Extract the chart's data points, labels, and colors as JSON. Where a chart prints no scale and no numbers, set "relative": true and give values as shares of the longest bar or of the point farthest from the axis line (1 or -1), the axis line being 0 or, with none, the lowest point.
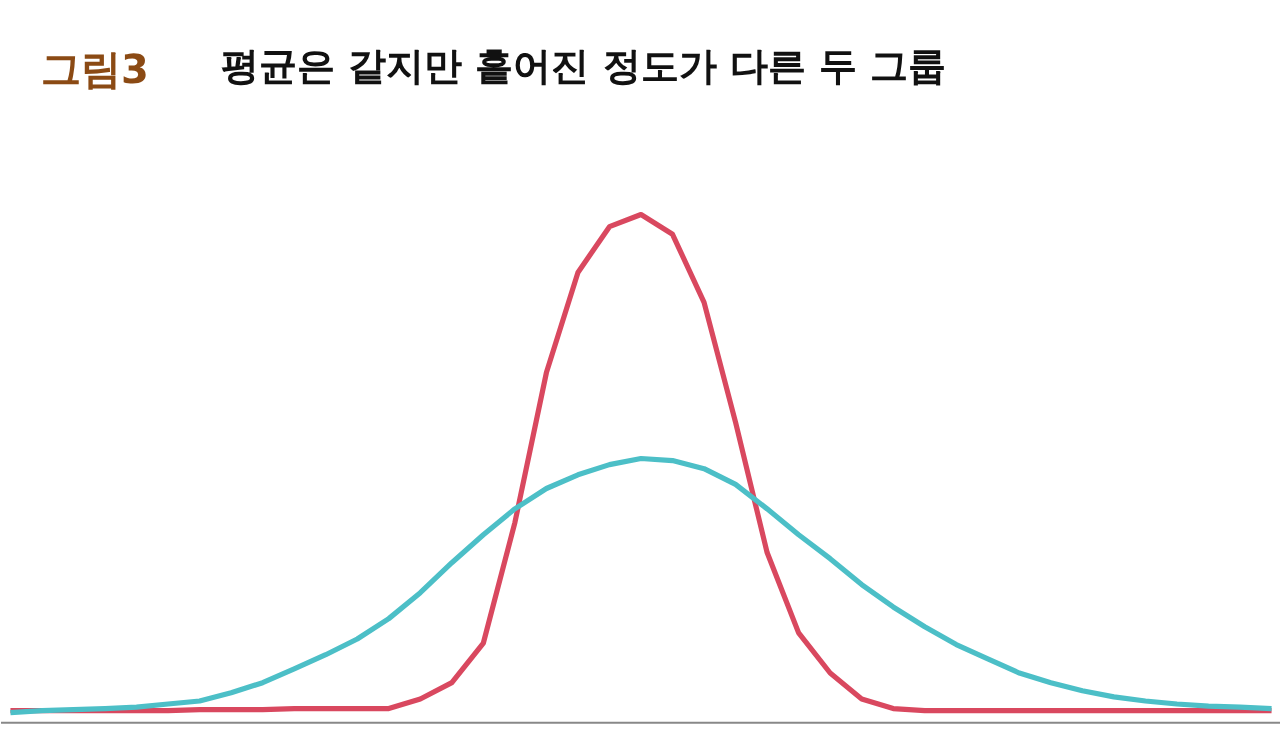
{
  "chart_data": {
    "type": "line",
    "relative": true,
    "title": "그림3",
    "subtitle": "평균은 같지만 흩어진 정도가 다른 두 그룹",
    "categories": [
      null,
      null,
      null,
      null,
      null,
      null,
      null,
      null,
      null,
      null,
      null,
      null,
      null,
      null,
      null,
      null,
      null,
      null,
      null,
      null,
      null,
      null,
      null,
      null,
      null,
      null,
      null,
      null,
      null,
      null,
      null,
      null,
      null,
      null,
      null,
      null,
      null,
      null,
      null,
      null,
      null
    ],
    "series": [
      {
        "color": "#d9485f",
        "values": [
          0.024,
          0.024,
          0.024,
          0.024,
          0.024,
          0.024,
          0.026,
          0.026,
          0.026,
          0.028,
          0.028,
          0.028,
          0.028,
          0.047,
          0.079,
          0.157,
          0.394,
          0.689,
          0.886,
          0.976,
          1,
          0.961,
          0.827,
          0.591,
          0.335,
          0.177,
          0.098,
          0.047,
          0.028,
          0.024,
          0.024,
          0.024,
          0.024,
          0.024,
          0.024,
          0.024,
          0.024,
          0.024,
          0.024,
          0.024,
          0.024
        ]
      },
      {
        "color": "#4cbfc7",
        "values": [
          0.02,
          0.024,
          0.026,
          0.028,
          0.031,
          0.037,
          0.043,
          0.059,
          0.079,
          0.106,
          0.134,
          0.165,
          0.205,
          0.256,
          0.315,
          0.37,
          0.421,
          0.461,
          0.488,
          0.508,
          0.52,
          0.516,
          0.5,
          0.469,
          0.421,
          0.37,
          0.323,
          0.272,
          0.228,
          0.189,
          0.154,
          0.126,
          0.098,
          0.079,
          0.063,
          0.051,
          0.043,
          0.037,
          0.033,
          0.031,
          0.028
        ]
      }
    ],
    "grid": false,
    "marker": "none",
    "line_style": "solid"
  }
}
